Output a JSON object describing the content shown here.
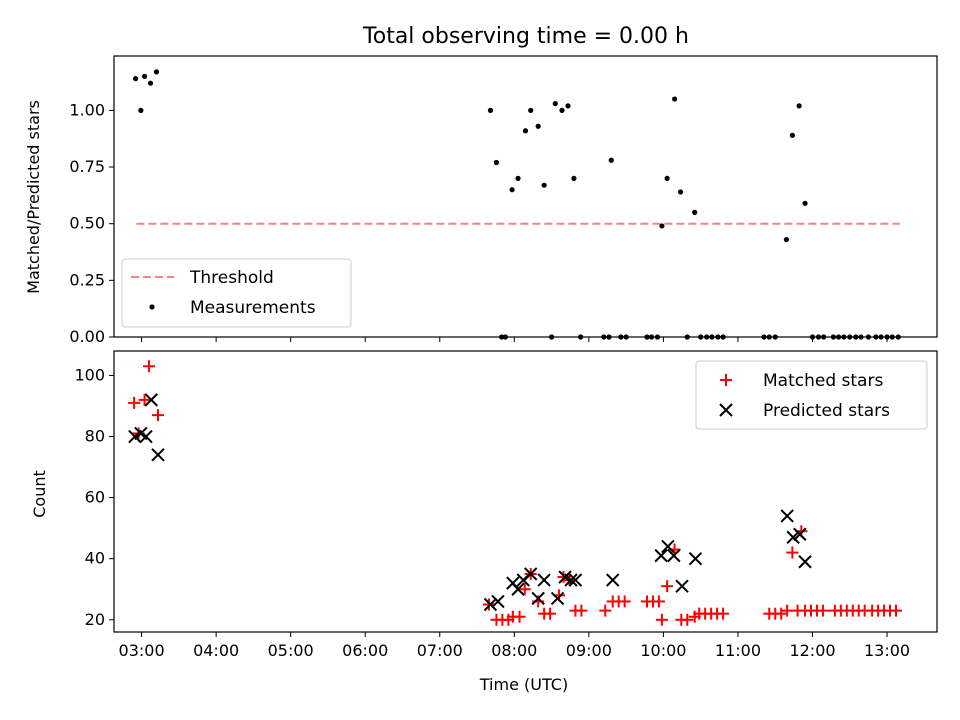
{
  "chart_data": [
    {
      "type": "scatter",
      "title": "Total observing time = 0.00 h",
      "xlabel": "",
      "ylabel": "Matched/Predicted stars",
      "xlim": [
        2.63,
        13.67
      ],
      "ylim": [
        0,
        1.24
      ],
      "yticks": [
        0.0,
        0.25,
        0.5,
        0.75,
        1.0
      ],
      "ytick_labels": [
        "0.00",
        "0.25",
        "0.50",
        "0.75",
        "1.00"
      ],
      "legend_position": "lower-left",
      "threshold": {
        "label": "Threshold",
        "value": 0.5,
        "x_range": [
          2.93,
          13.17
        ],
        "color": "#ff8080"
      },
      "series": [
        {
          "name": "Measurements",
          "color": "#000000",
          "points": [
            [
              2.92,
              1.14
            ],
            [
              2.99,
              1.0
            ],
            [
              3.04,
              1.15
            ],
            [
              3.12,
              1.12
            ],
            [
              3.2,
              1.17
            ],
            [
              7.68,
              1.0
            ],
            [
              7.76,
              0.77
            ],
            [
              7.83,
              0.0
            ],
            [
              7.88,
              0.0
            ],
            [
              7.97,
              0.65
            ],
            [
              8.05,
              0.7
            ],
            [
              8.15,
              0.91
            ],
            [
              8.22,
              1.0
            ],
            [
              8.32,
              0.93
            ],
            [
              8.4,
              0.67
            ],
            [
              8.5,
              0.0
            ],
            [
              8.55,
              1.03
            ],
            [
              8.64,
              1.0
            ],
            [
              8.72,
              1.02
            ],
            [
              8.8,
              0.7
            ],
            [
              8.89,
              0.0
            ],
            [
              9.2,
              0.0
            ],
            [
              9.27,
              0.0
            ],
            [
              9.3,
              0.78
            ],
            [
              9.43,
              0.0
            ],
            [
              9.5,
              0.0
            ],
            [
              9.78,
              0.0
            ],
            [
              9.84,
              0.0
            ],
            [
              9.92,
              0.0
            ],
            [
              9.98,
              0.49
            ],
            [
              10.05,
              0.7
            ],
            [
              10.15,
              1.05
            ],
            [
              10.23,
              0.64
            ],
            [
              10.32,
              0.0
            ],
            [
              10.42,
              0.55
            ],
            [
              10.5,
              0.0
            ],
            [
              10.58,
              0.0
            ],
            [
              10.65,
              0.0
            ],
            [
              10.73,
              0.0
            ],
            [
              10.8,
              0.0
            ],
            [
              11.35,
              0.0
            ],
            [
              11.42,
              0.0
            ],
            [
              11.5,
              0.0
            ],
            [
              11.65,
              0.43
            ],
            [
              11.73,
              0.89
            ],
            [
              11.82,
              1.02
            ],
            [
              11.9,
              0.59
            ],
            [
              12.0,
              0.0
            ],
            [
              12.08,
              0.0
            ],
            [
              12.15,
              0.0
            ],
            [
              12.28,
              0.0
            ],
            [
              12.35,
              0.0
            ],
            [
              12.42,
              0.0
            ],
            [
              12.5,
              0.0
            ],
            [
              12.58,
              0.0
            ],
            [
              12.65,
              0.0
            ],
            [
              12.75,
              0.0
            ],
            [
              12.85,
              0.0
            ],
            [
              12.92,
              0.0
            ],
            [
              13.0,
              0.0
            ],
            [
              13.07,
              0.0
            ],
            [
              13.15,
              0.0
            ]
          ]
        }
      ]
    },
    {
      "type": "scatter",
      "title": "",
      "xlabel": "Time (UTC)",
      "ylabel": "Count",
      "xlim": [
        2.63,
        13.67
      ],
      "ylim": [
        16,
        108
      ],
      "yticks": [
        20,
        40,
        60,
        80,
        100
      ],
      "ytick_labels": [
        "20",
        "40",
        "60",
        "80",
        "100"
      ],
      "xticks": [
        3,
        4,
        5,
        6,
        7,
        8,
        9,
        10,
        11,
        12,
        13
      ],
      "xtick_labels": [
        "03:00",
        "04:00",
        "05:00",
        "06:00",
        "07:00",
        "08:00",
        "09:00",
        "10:00",
        "11:00",
        "12:00",
        "13:00"
      ],
      "legend_position": "upper-right",
      "series": [
        {
          "name": "Matched stars",
          "marker": "+",
          "color": "#ff0000",
          "points": [
            [
              2.9,
              91
            ],
            [
              2.96,
              81
            ],
            [
              3.04,
              92
            ],
            [
              3.1,
              103
            ],
            [
              3.22,
              87
            ],
            [
              7.66,
              25
            ],
            [
              7.76,
              20
            ],
            [
              7.84,
              20
            ],
            [
              7.92,
              20
            ],
            [
              7.98,
              21
            ],
            [
              8.07,
              21
            ],
            [
              8.14,
              30
            ],
            [
              8.22,
              35
            ],
            [
              8.32,
              26
            ],
            [
              8.4,
              22
            ],
            [
              8.48,
              22
            ],
            [
              8.6,
              28
            ],
            [
              8.66,
              34
            ],
            [
              8.74,
              33
            ],
            [
              8.82,
              23
            ],
            [
              8.9,
              23
            ],
            [
              9.22,
              23
            ],
            [
              9.32,
              26
            ],
            [
              9.4,
              26
            ],
            [
              9.48,
              26
            ],
            [
              9.78,
              26
            ],
            [
              9.86,
              26
            ],
            [
              9.94,
              26
            ],
            [
              9.98,
              20
            ],
            [
              10.05,
              31
            ],
            [
              10.15,
              43
            ],
            [
              10.24,
              20
            ],
            [
              10.32,
              20
            ],
            [
              10.42,
              21
            ],
            [
              10.48,
              22
            ],
            [
              10.56,
              22
            ],
            [
              10.64,
              22
            ],
            [
              10.72,
              22
            ],
            [
              10.8,
              22
            ],
            [
              11.42,
              22
            ],
            [
              11.5,
              22
            ],
            [
              11.58,
              22
            ],
            [
              11.66,
              23
            ],
            [
              11.73,
              42
            ],
            [
              11.8,
              23
            ],
            [
              11.85,
              49
            ],
            [
              11.9,
              23
            ],
            [
              11.98,
              23
            ],
            [
              12.06,
              23
            ],
            [
              12.14,
              23
            ],
            [
              12.3,
              23
            ],
            [
              12.38,
              23
            ],
            [
              12.46,
              23
            ],
            [
              12.54,
              23
            ],
            [
              12.62,
              23
            ],
            [
              12.7,
              23
            ],
            [
              12.8,
              23
            ],
            [
              12.88,
              23
            ],
            [
              12.96,
              23
            ],
            [
              13.04,
              23
            ],
            [
              13.12,
              23
            ]
          ]
        },
        {
          "name": "Predicted stars",
          "marker": "x",
          "color": "#000000",
          "points": [
            [
              2.91,
              80
            ],
            [
              2.99,
              81
            ],
            [
              3.06,
              80
            ],
            [
              3.13,
              92
            ],
            [
              3.22,
              74
            ],
            [
              7.68,
              25
            ],
            [
              7.78,
              26
            ],
            [
              7.98,
              32
            ],
            [
              8.05,
              30
            ],
            [
              8.12,
              33
            ],
            [
              8.22,
              35
            ],
            [
              8.32,
              27
            ],
            [
              8.4,
              33
            ],
            [
              8.58,
              27
            ],
            [
              8.68,
              34
            ],
            [
              8.76,
              33
            ],
            [
              8.82,
              33
            ],
            [
              9.32,
              33
            ],
            [
              9.97,
              41
            ],
            [
              10.06,
              44
            ],
            [
              10.14,
              41
            ],
            [
              10.25,
              31
            ],
            [
              10.43,
              40
            ],
            [
              11.66,
              54
            ],
            [
              11.74,
              47
            ],
            [
              11.83,
              48
            ],
            [
              11.9,
              39
            ]
          ]
        }
      ]
    }
  ]
}
